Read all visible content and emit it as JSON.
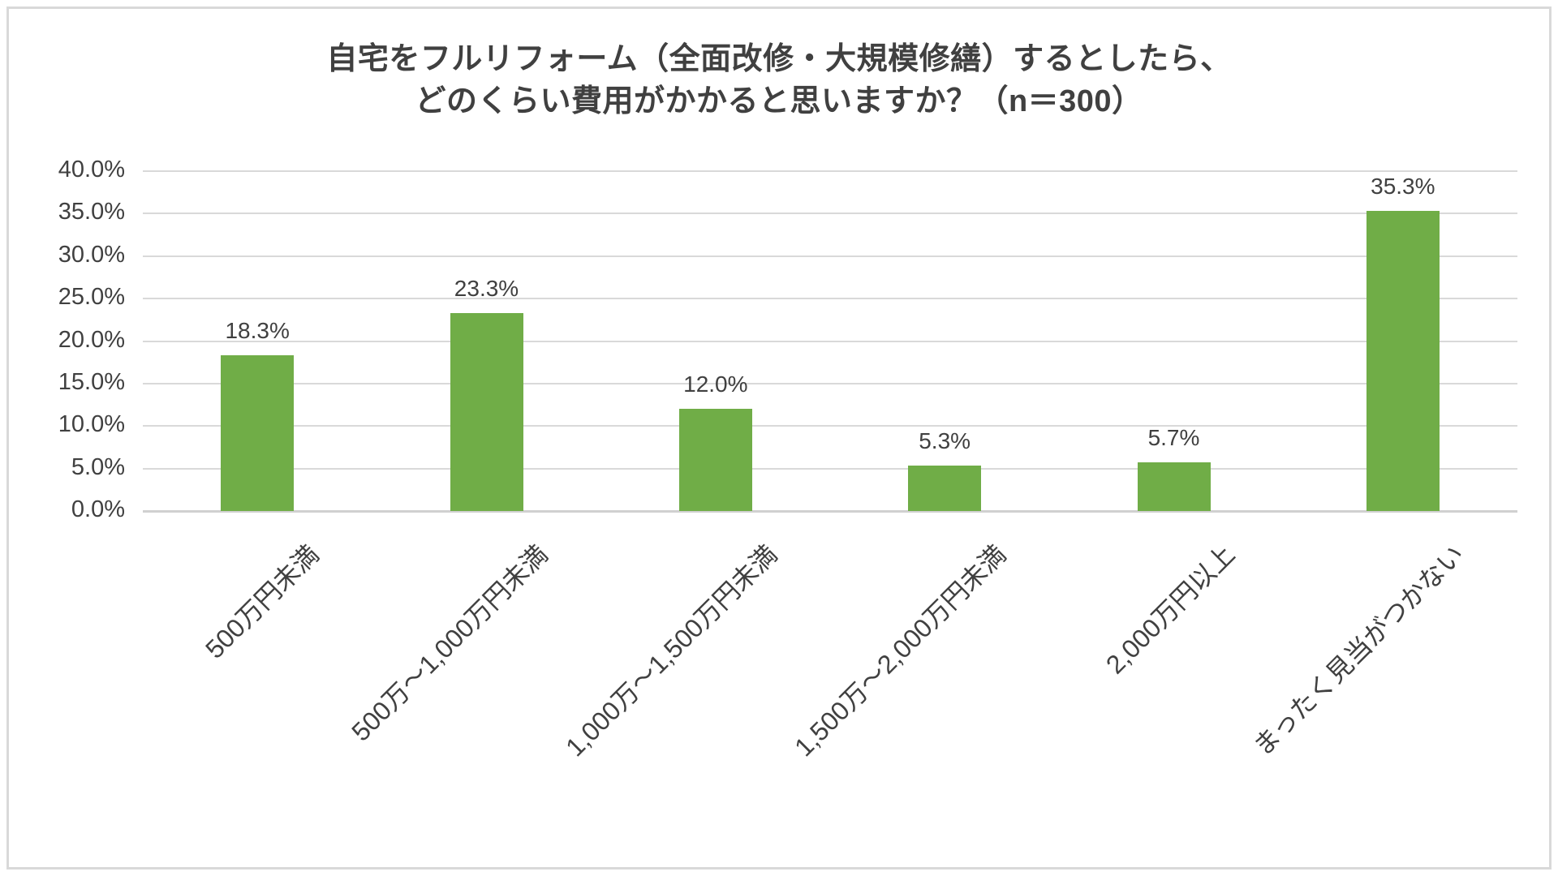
{
  "chart_data": {
    "type": "bar",
    "title": "自宅をフルリフォーム（全面改修・大規模修繕）するとしたら、どのくらい費用がかかると思いますか？（n＝300）",
    "title_line1": "自宅をフルリフォーム（全面改修・大規模修繕）するとしたら、",
    "title_line2": "どのくらい費用がかかると思いますか？（n＝300）",
    "categories": [
      "500万円未満",
      "500万～1,000万円未満",
      "1,000万～1,500万円未満",
      "1,500万～2,000万円未満",
      "2,000万円以上",
      "まったく見当がつかない"
    ],
    "values": [
      18.3,
      23.3,
      12.0,
      5.3,
      5.7,
      35.3
    ],
    "data_labels": [
      "18.3%",
      "23.3%",
      "12.0%",
      "5.3%",
      "5.7%",
      "35.3%"
    ],
    "y_ticks": [
      "0.0%",
      "5.0%",
      "10.0%",
      "15.0%",
      "20.0%",
      "25.0%",
      "30.0%",
      "35.0%",
      "40.0%"
    ],
    "ylim": [
      0,
      40
    ],
    "y_step": 5,
    "xlabel": "",
    "ylabel": "",
    "grid": "on",
    "legend": "none",
    "colors": {
      "bar": "#70AD47",
      "gridline": "#D9D9D9",
      "axis_line": "#D0D0D0",
      "text": "#404040",
      "background": "#FFFFFF",
      "border": "#D9D9D9"
    }
  }
}
